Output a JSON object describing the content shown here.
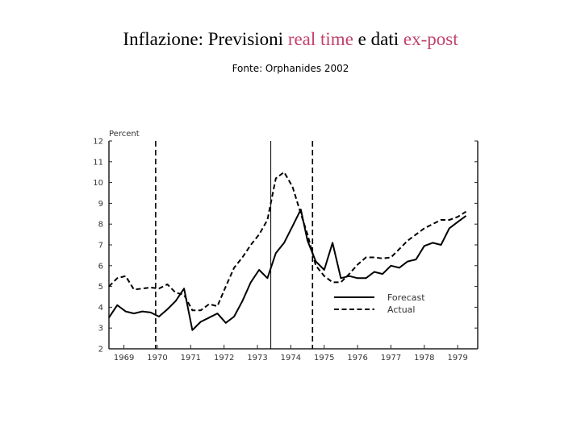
{
  "title": {
    "part1": "Inflazione: Previsioni ",
    "part2": "real time",
    "part3": " e dati ",
    "part4": "ex-post"
  },
  "source": "Fonte: Orphanides 2002",
  "colors": {
    "accent": "#c2436a",
    "line": "#000000"
  },
  "chart_data": {
    "type": "line",
    "ylabel": "Percent",
    "ylim": [
      2,
      12
    ],
    "xlim": [
      1968.55,
      1979.6
    ],
    "y_ticks": [
      2,
      3,
      4,
      5,
      6,
      7,
      8,
      9,
      10,
      11,
      12
    ],
    "x_tick_labels": [
      "1969",
      "1970",
      "1971",
      "1972",
      "1973",
      "1974",
      "1975",
      "1976",
      "1977",
      "1978",
      "1979"
    ],
    "x_ticks": [
      1969,
      1970,
      1971,
      1972,
      1973,
      1974,
      1975,
      1976,
      1977,
      1978,
      1979
    ],
    "vertical_lines": [
      {
        "x": 1969.95,
        "style": "dashed"
      },
      {
        "x": 1973.4,
        "style": "solid"
      },
      {
        "x": 1974.65,
        "style": "dashed"
      }
    ],
    "legend_position": "bottom-right",
    "series": [
      {
        "name": "Forecast",
        "style": "solid",
        "x": [
          1968.55,
          1968.8,
          1969.05,
          1969.3,
          1969.55,
          1969.8,
          1970.05,
          1970.3,
          1970.55,
          1970.8,
          1971.05,
          1971.3,
          1971.55,
          1971.8,
          1972.05,
          1972.3,
          1972.55,
          1972.8,
          1973.05,
          1973.3,
          1973.55,
          1973.8,
          1974.05,
          1974.3,
          1974.5,
          1974.75,
          1975.0,
          1975.25,
          1975.5,
          1975.75,
          1976.0,
          1976.25,
          1976.5,
          1976.75,
          1977.0,
          1977.25,
          1977.5,
          1977.75,
          1978.0,
          1978.25,
          1978.5,
          1978.75,
          1979.0,
          1979.25
        ],
        "y": [
          3.5,
          4.1,
          3.8,
          3.7,
          3.8,
          3.75,
          3.55,
          3.9,
          4.3,
          4.9,
          2.9,
          3.3,
          3.5,
          3.7,
          3.25,
          3.55,
          4.3,
          5.2,
          5.8,
          5.4,
          6.6,
          7.1,
          7.9,
          8.7,
          7.2,
          6.2,
          5.8,
          7.1,
          5.4,
          5.5,
          5.4,
          5.4,
          5.7,
          5.6,
          6.0,
          5.9,
          6.2,
          6.3,
          6.95,
          7.1,
          7.0,
          7.8,
          8.1,
          8.4
        ]
      },
      {
        "name": "Actual",
        "style": "dashed",
        "x": [
          1968.55,
          1968.8,
          1969.05,
          1969.3,
          1969.55,
          1969.8,
          1970.05,
          1970.3,
          1970.55,
          1970.8,
          1971.05,
          1971.3,
          1971.55,
          1971.8,
          1972.05,
          1972.3,
          1972.55,
          1972.8,
          1973.05,
          1973.3,
          1973.55,
          1973.8,
          1974.05,
          1974.3,
          1974.5,
          1974.75,
          1975.0,
          1975.25,
          1975.5,
          1975.75,
          1976.0,
          1976.25,
          1976.5,
          1976.75,
          1977.0,
          1977.25,
          1977.5,
          1977.75,
          1978.0,
          1978.25,
          1978.5,
          1978.75,
          1979.0,
          1979.25
        ],
        "y": [
          5.0,
          5.4,
          5.5,
          4.85,
          4.9,
          4.95,
          4.9,
          5.1,
          4.7,
          4.6,
          3.85,
          3.85,
          4.15,
          4.05,
          5.0,
          5.9,
          6.4,
          7.0,
          7.5,
          8.2,
          10.2,
          10.5,
          9.8,
          8.5,
          7.5,
          6.0,
          5.5,
          5.2,
          5.2,
          5.6,
          6.05,
          6.4,
          6.4,
          6.35,
          6.4,
          6.8,
          7.2,
          7.5,
          7.8,
          8.0,
          8.2,
          8.2,
          8.35,
          8.6
        ]
      }
    ]
  }
}
